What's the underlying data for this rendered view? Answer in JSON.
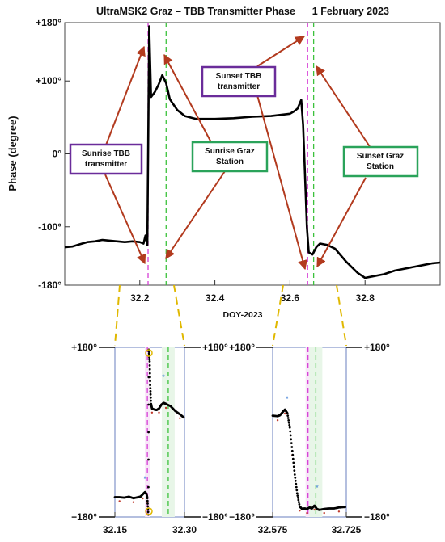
{
  "chart_data": [
    {
      "type": "line",
      "title": "UltraMSK2 Graz – TBB Transmitter Phase      1 February 2023",
      "xlabel": "DOY-2023",
      "ylabel": "Phase (degree)",
      "xlim": [
        32.0,
        33.0
      ],
      "ylim": [
        -180,
        180
      ],
      "xticks": [
        {
          "v": 32.2,
          "label": "32.2"
        },
        {
          "v": 32.4,
          "label": "32.4"
        },
        {
          "v": 32.6,
          "label": "32.6"
        },
        {
          "v": 32.8,
          "label": "32.8"
        }
      ],
      "yticks": [
        {
          "v": 180,
          "label": "+180°"
        },
        {
          "v": 100,
          "label": "+100°"
        },
        {
          "v": 0,
          "label": "0°"
        },
        {
          "v": -100,
          "label": "-100°"
        },
        {
          "v": -180,
          "label": "-180°"
        }
      ],
      "series": [
        {
          "color": "#000000",
          "x": [
            32.0,
            32.02,
            32.04,
            32.06,
            32.08,
            32.1,
            32.12,
            32.14,
            32.16,
            32.18,
            32.2,
            32.21,
            32.215,
            32.22,
            32.225,
            32.23,
            32.24,
            32.25,
            32.26,
            32.27,
            32.28,
            32.3,
            32.32,
            32.35,
            32.4,
            32.45,
            32.5,
            32.55,
            32.6,
            32.61,
            32.62,
            32.63,
            32.635,
            32.64,
            32.645,
            32.65,
            32.66,
            32.67,
            32.68,
            32.7,
            32.72,
            32.75,
            32.78,
            32.8,
            32.82,
            32.85,
            32.88,
            32.9,
            32.93,
            32.96,
            32.98,
            33.0
          ],
          "y": [
            -128,
            -127,
            -124,
            -121,
            -120,
            -118,
            -119,
            -120,
            -121,
            -120,
            -121,
            -123,
            -112,
            -125,
            175,
            78,
            85,
            95,
            108,
            97,
            75,
            60,
            52,
            48,
            48,
            49,
            51,
            52,
            55,
            58,
            62,
            74,
            40,
            -30,
            -100,
            -135,
            -138,
            -128,
            -123,
            -125,
            -130,
            -148,
            -163,
            -170,
            -168,
            -165,
            -160,
            -158,
            -155,
            -152,
            -150,
            -149
          ]
        }
      ],
      "vlines": [
        {
          "x": 32.222,
          "color": "#d63fd6",
          "name": "sunrise-tbb-line"
        },
        {
          "x": 32.27,
          "color": "#3cc23c",
          "name": "sunrise-graz-line"
        },
        {
          "x": 32.647,
          "color": "#d63fd6",
          "name": "sunset-tbb-line"
        },
        {
          "x": 32.663,
          "color": "#3cc23c",
          "name": "sunset-graz-line"
        }
      ],
      "annotations": [
        {
          "label": "Sunrise TBB\ntransmitter",
          "color": "#6a2c9a"
        },
        {
          "label": "Sunrise Graz\nStation",
          "color": "#2aa35a"
        },
        {
          "label": "Sunset TBB\ntransmitter",
          "color": "#6a2c9a"
        },
        {
          "label": "Sunset Graz\nStation",
          "color": "#2aa35a"
        }
      ]
    },
    {
      "type": "scatter",
      "xlim": [
        32.15,
        32.3
      ],
      "ylim": [
        -180,
        180
      ],
      "xticks": [
        {
          "v": 32.15,
          "label": "32.15"
        },
        {
          "v": 32.3,
          "label": "32.30"
        }
      ],
      "yticks": [
        {
          "v": 180,
          "label": "+180°"
        },
        {
          "v": -180,
          "label": "−180°"
        }
      ],
      "x": [
        32.15,
        32.16,
        32.17,
        32.18,
        32.19,
        32.2,
        32.205,
        32.21,
        32.215,
        32.218,
        32.22,
        32.222,
        32.223,
        32.225,
        32.226,
        32.228,
        32.23,
        32.235,
        32.24,
        32.245,
        32.25,
        32.255,
        32.26,
        32.27,
        32.28,
        32.29,
        32.3
      ],
      "y": [
        -138,
        -138,
        -139,
        -137,
        -140,
        -138,
        -137,
        -132,
        -127,
        -131,
        -140,
        -175,
        175,
        150,
        100,
        60,
        50,
        48,
        47,
        50,
        58,
        62,
        60,
        55,
        45,
        38,
        30
      ],
      "vlines": [
        {
          "x": 32.22,
          "color": "#d63fd6"
        },
        {
          "x": 32.265,
          "color": "#3cc23c"
        }
      ]
    },
    {
      "type": "scatter",
      "xlim": [
        32.575,
        32.725
      ],
      "ylim": [
        -180,
        180
      ],
      "xticks": [
        {
          "v": 32.575,
          "label": "32.575"
        },
        {
          "v": 32.725,
          "label": "32.725"
        }
      ],
      "yticks": [
        {
          "v": 180,
          "label": "+180°"
        },
        {
          "v": -180,
          "label": "−180°"
        }
      ],
      "x": [
        32.575,
        32.585,
        32.59,
        32.595,
        32.6,
        32.605,
        32.61,
        32.615,
        32.62,
        32.625,
        32.63,
        32.635,
        32.64,
        32.645,
        32.65,
        32.655,
        32.66,
        32.665,
        32.67,
        32.68,
        32.69,
        32.7,
        32.71,
        32.725
      ],
      "y": [
        35,
        34,
        36,
        42,
        48,
        40,
        10,
        -40,
        -90,
        -130,
        -158,
        -163,
        -162,
        -163,
        -160,
        -162,
        -156,
        -163,
        -165,
        -163,
        -162,
        -162,
        -160,
        -159
      ],
      "vlines": [
        {
          "x": 32.647,
          "color": "#d63fd6"
        },
        {
          "x": 32.663,
          "color": "#3cc23c"
        }
      ]
    }
  ]
}
